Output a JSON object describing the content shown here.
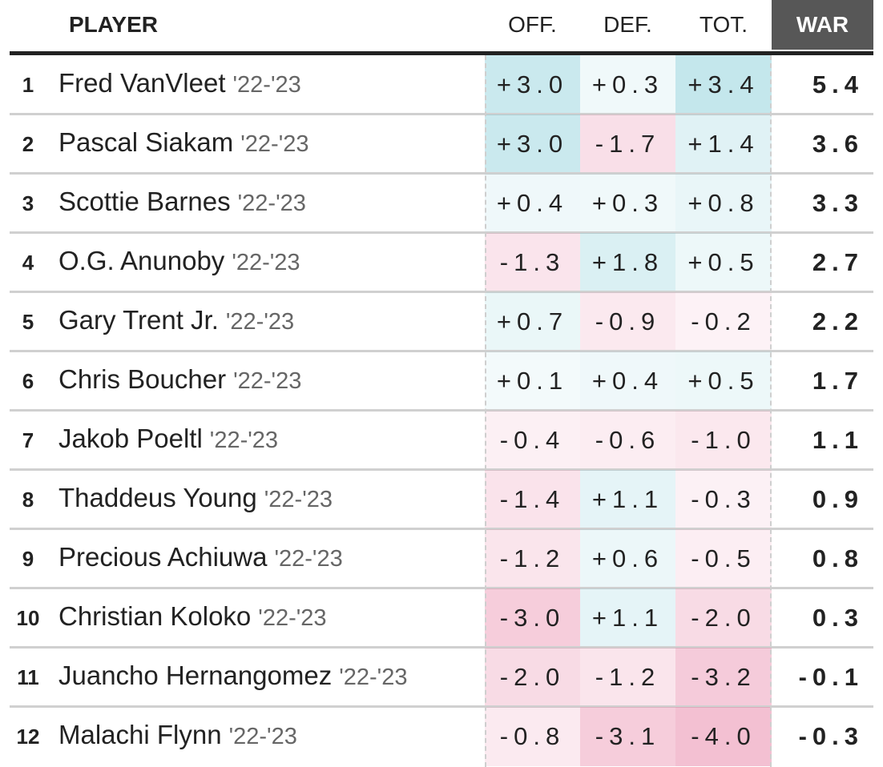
{
  "table": {
    "columns": [
      "PLAYER",
      "OFF.",
      "DEF.",
      "TOT.",
      "WAR"
    ],
    "rows": [
      {
        "rank": 1,
        "name": "Fred VanVleet",
        "season": "'22-'23",
        "off": "+3.0",
        "def": "+0.3",
        "tot": "+3.4",
        "war": "5.4"
      },
      {
        "rank": 2,
        "name": "Pascal Siakam",
        "season": "'22-'23",
        "off": "+3.0",
        "def": "-1.7",
        "tot": "+1.4",
        "war": "3.6"
      },
      {
        "rank": 3,
        "name": "Scottie Barnes",
        "season": "'22-'23",
        "off": "+0.4",
        "def": "+0.3",
        "tot": "+0.8",
        "war": "3.3"
      },
      {
        "rank": 4,
        "name": "O.G. Anunoby",
        "season": "'22-'23",
        "off": "-1.3",
        "def": "+1.8",
        "tot": "+0.5",
        "war": "2.7"
      },
      {
        "rank": 5,
        "name": "Gary Trent Jr.",
        "season": "'22-'23",
        "off": "+0.7",
        "def": "-0.9",
        "tot": "-0.2",
        "war": "2.2"
      },
      {
        "rank": 6,
        "name": "Chris Boucher",
        "season": "'22-'23",
        "off": "+0.1",
        "def": "+0.4",
        "tot": "+0.5",
        "war": "1.7"
      },
      {
        "rank": 7,
        "name": "Jakob Poeltl",
        "season": "'22-'23",
        "off": "-0.4",
        "def": "-0.6",
        "tot": "-1.0",
        "war": "1.1"
      },
      {
        "rank": 8,
        "name": "Thaddeus Young",
        "season": "'22-'23",
        "off": "-1.4",
        "def": "+1.1",
        "tot": "-0.3",
        "war": "0.9"
      },
      {
        "rank": 9,
        "name": "Precious Achiuwa",
        "season": "'22-'23",
        "off": "-1.2",
        "def": "+0.6",
        "tot": "-0.5",
        "war": "0.8"
      },
      {
        "rank": 10,
        "name": "Christian Koloko",
        "season": "'22-'23",
        "off": "-3.0",
        "def": "+1.1",
        "tot": "-2.0",
        "war": "0.3"
      },
      {
        "rank": 11,
        "name": "Juancho Hernangomez",
        "season": "'22-'23",
        "off": "-2.0",
        "def": "-1.2",
        "tot": "-3.2",
        "war": "-0.1"
      },
      {
        "rank": 12,
        "name": "Malachi Flynn",
        "season": "'22-'23",
        "off": "-0.8",
        "def": "-3.1",
        "tot": "-4.0",
        "war": "-0.3"
      }
    ]
  }
}
